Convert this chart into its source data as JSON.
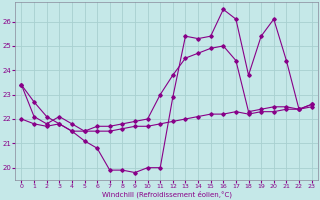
{
  "xlabel": "Windchill (Refroidissement éolien,°C)",
  "background_color": "#c5e8e8",
  "grid_color": "#a8d0d0",
  "line_color": "#880088",
  "xlim": [
    -0.5,
    23.5
  ],
  "ylim": [
    19.5,
    26.8
  ],
  "yticks": [
    20,
    21,
    22,
    23,
    24,
    25,
    26
  ],
  "xticks": [
    0,
    1,
    2,
    3,
    4,
    5,
    6,
    7,
    8,
    9,
    10,
    11,
    12,
    13,
    14,
    15,
    16,
    17,
    18,
    19,
    20,
    21,
    22,
    23
  ],
  "series": [
    {
      "x": [
        0,
        1,
        2,
        3,
        4,
        5,
        6,
        7,
        8,
        9,
        10,
        11,
        12,
        13,
        14,
        15,
        16,
        17,
        18,
        19,
        20,
        21,
        22,
        23
      ],
      "y": [
        23.4,
        22.7,
        22.1,
        21.8,
        21.5,
        21.1,
        20.8,
        19.9,
        19.9,
        19.8,
        20.0,
        20.0,
        22.9,
        25.4,
        25.3,
        25.4,
        26.5,
        26.1,
        23.8,
        25.4,
        26.1,
        24.4,
        22.4,
        22.6
      ]
    },
    {
      "x": [
        0,
        1,
        2,
        3,
        4,
        5,
        6,
        7,
        8,
        9,
        10,
        11,
        12,
        13,
        14,
        15,
        16,
        17,
        18,
        19,
        20,
        21,
        22,
        23
      ],
      "y": [
        23.4,
        22.1,
        21.8,
        22.1,
        21.8,
        21.5,
        21.7,
        21.7,
        21.8,
        21.9,
        22.0,
        23.0,
        23.8,
        24.5,
        24.7,
        24.9,
        25.0,
        24.4,
        22.3,
        22.4,
        22.5,
        22.5,
        22.4,
        22.6
      ]
    },
    {
      "x": [
        0,
        1,
        2,
        3,
        4,
        5,
        6,
        7,
        8,
        9,
        10,
        11,
        12,
        13,
        14,
        15,
        16,
        17,
        18,
        19,
        20,
        21,
        22,
        23
      ],
      "y": [
        22.0,
        21.8,
        21.7,
        21.8,
        21.5,
        21.5,
        21.5,
        21.5,
        21.6,
        21.7,
        21.7,
        21.8,
        21.9,
        22.0,
        22.1,
        22.2,
        22.2,
        22.3,
        22.2,
        22.3,
        22.3,
        22.4,
        22.4,
        22.5
      ]
    }
  ]
}
